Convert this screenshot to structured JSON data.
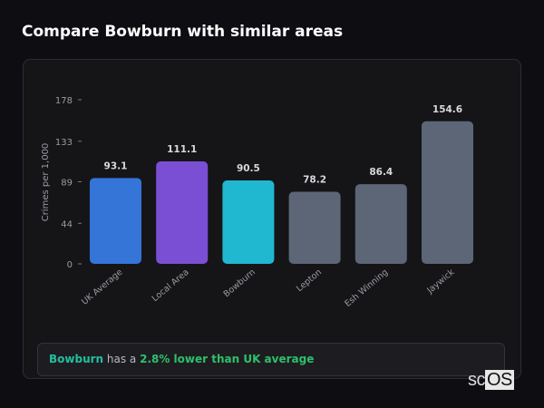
{
  "title": "Compare Bowburn with similar areas",
  "chart_data": {
    "type": "bar",
    "ylabel": "Crimes per 1,000",
    "xlabel": "",
    "ylim": [
      0,
      178
    ],
    "yticks": [
      0,
      44,
      89,
      133,
      178
    ],
    "grid": false,
    "categories": [
      "UK Average",
      "Local Area",
      "Bowburn",
      "Lepton",
      "Esh Winning",
      "Jaywick"
    ],
    "values": [
      93.1,
      111.1,
      90.5,
      78.2,
      86.4,
      154.6
    ],
    "value_labels": [
      "93.1",
      "111.1",
      "90.5",
      "78.2",
      "86.4",
      "154.6"
    ],
    "colors": [
      "#3575d8",
      "#7b4fd4",
      "#20b8d0",
      "#5c6677",
      "#5c6677",
      "#5c6677"
    ]
  },
  "notice": {
    "area": "Bowburn",
    "middle": " has a ",
    "comparison": "2.8% lower than UK average"
  },
  "logo": {
    "prefix": "sc",
    "suffix": "OS"
  }
}
